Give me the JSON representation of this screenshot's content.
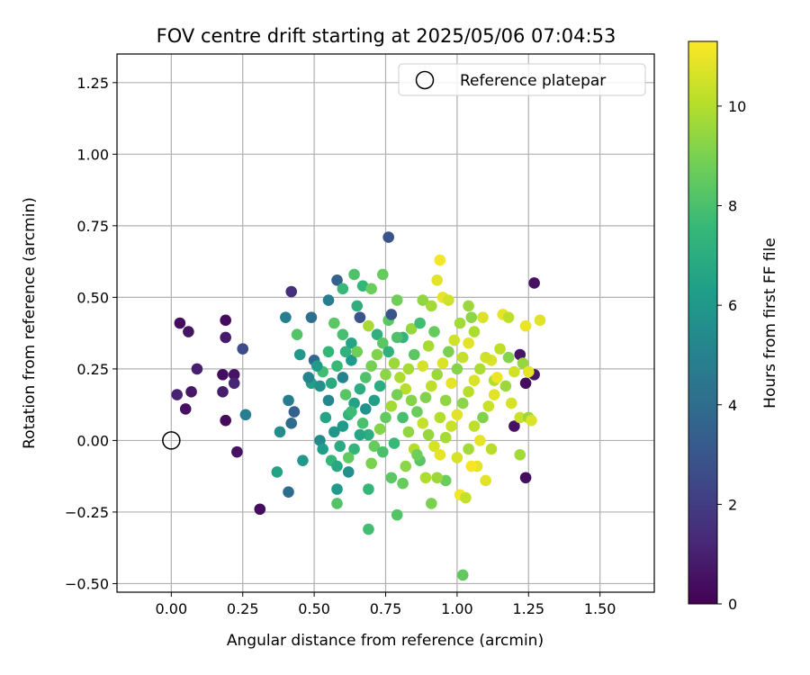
{
  "chart_data": {
    "type": "scatter",
    "title": "FOV centre drift starting at 2025/05/06 07:04:53",
    "xlabel": "Angular distance from reference (arcmin)",
    "ylabel": "Rotation from reference (arcmin)",
    "xlim": [
      -0.19,
      1.69
    ],
    "ylim": [
      -0.53,
      1.35
    ],
    "xticks": [
      "0.00",
      "0.25",
      "0.50",
      "0.75",
      "1.00",
      "1.25",
      "1.50"
    ],
    "xtick_values": [
      0,
      0.25,
      0.5,
      0.75,
      1.0,
      1.25,
      1.5
    ],
    "yticks": [
      "−0.50",
      "−0.25",
      "0.00",
      "0.25",
      "0.50",
      "0.75",
      "1.00",
      "1.25"
    ],
    "ytick_values": [
      -0.5,
      -0.25,
      0,
      0.25,
      0.5,
      0.75,
      1.0,
      1.25
    ],
    "grid": true,
    "legend": {
      "placement": "top-right",
      "entries": [
        "Reference platepar"
      ]
    },
    "reference_point": {
      "x": 0.0,
      "y": 0.0,
      "label": "Reference platepar"
    },
    "colorbar": {
      "label": "Hours from first FF file",
      "range": [
        0,
        11.3
      ],
      "ticks": [
        "0",
        "2",
        "4",
        "6",
        "8",
        "10"
      ],
      "tick_values": [
        0,
        2,
        4,
        6,
        8,
        10
      ],
      "colormap": "viridis",
      "colormap_stops": [
        "#440154",
        "#482878",
        "#3e4a89",
        "#31688e",
        "#26828e",
        "#1f9e89",
        "#35b779",
        "#6ece58",
        "#b5de2b",
        "#fde725"
      ]
    },
    "points": [
      {
        "x": 0.03,
        "y": 0.41,
        "c": 0.4
      },
      {
        "x": 0.06,
        "y": 0.38,
        "c": 0.6
      },
      {
        "x": 0.09,
        "y": 0.25,
        "c": 0.9
      },
      {
        "x": 0.02,
        "y": 0.16,
        "c": 1.1
      },
      {
        "x": 0.07,
        "y": 0.17,
        "c": 0.7
      },
      {
        "x": 0.05,
        "y": 0.11,
        "c": 0.5
      },
      {
        "x": 0.19,
        "y": 0.42,
        "c": 0.3
      },
      {
        "x": 0.19,
        "y": 0.36,
        "c": 0.8
      },
      {
        "x": 0.18,
        "y": 0.23,
        "c": 0.4
      },
      {
        "x": 0.22,
        "y": 0.23,
        "c": 0.6
      },
      {
        "x": 0.22,
        "y": 0.2,
        "c": 1.2
      },
      {
        "x": 0.18,
        "y": 0.17,
        "c": 0.9
      },
      {
        "x": 0.19,
        "y": 0.07,
        "c": 0.3
      },
      {
        "x": 0.23,
        "y": -0.04,
        "c": 0.5
      },
      {
        "x": 0.25,
        "y": 0.32,
        "c": 2.6
      },
      {
        "x": 0.26,
        "y": 0.09,
        "c": 4.8
      },
      {
        "x": 0.31,
        "y": -0.24,
        "c": 0.4
      },
      {
        "x": 0.42,
        "y": 0.52,
        "c": 1.5
      },
      {
        "x": 0.4,
        "y": 0.43,
        "c": 4.9
      },
      {
        "x": 0.44,
        "y": 0.37,
        "c": 8.2
      },
      {
        "x": 0.45,
        "y": 0.3,
        "c": 6.0
      },
      {
        "x": 0.41,
        "y": 0.14,
        "c": 4.7
      },
      {
        "x": 0.43,
        "y": 0.1,
        "c": 3.5
      },
      {
        "x": 0.42,
        "y": 0.06,
        "c": 4.0
      },
      {
        "x": 0.38,
        "y": 0.03,
        "c": 5.5
      },
      {
        "x": 0.37,
        "y": -0.11,
        "c": 6.5
      },
      {
        "x": 0.41,
        "y": -0.18,
        "c": 4.0
      },
      {
        "x": 0.46,
        "y": -0.07,
        "c": 6.0
      },
      {
        "x": 0.49,
        "y": 0.43,
        "c": 4.1
      },
      {
        "x": 0.5,
        "y": 0.28,
        "c": 3.8
      },
      {
        "x": 0.49,
        "y": 0.2,
        "c": 6.4
      },
      {
        "x": 0.53,
        "y": 0.24,
        "c": 7.8
      },
      {
        "x": 0.55,
        "y": 0.31,
        "c": 7.5
      },
      {
        "x": 0.55,
        "y": 0.49,
        "c": 4.8
      },
      {
        "x": 0.58,
        "y": 0.56,
        "c": 3.5
      },
      {
        "x": 0.6,
        "y": 0.53,
        "c": 7.6
      },
      {
        "x": 0.64,
        "y": 0.58,
        "c": 8.1
      },
      {
        "x": 0.67,
        "y": 0.54,
        "c": 7.5
      },
      {
        "x": 0.7,
        "y": 0.53,
        "c": 8.7
      },
      {
        "x": 0.74,
        "y": 0.58,
        "c": 8.6
      },
      {
        "x": 0.76,
        "y": 0.71,
        "c": 2.9
      },
      {
        "x": 0.79,
        "y": 0.49,
        "c": 8.8
      },
      {
        "x": 0.57,
        "y": 0.41,
        "c": 8.4
      },
      {
        "x": 0.6,
        "y": 0.37,
        "c": 7.9
      },
      {
        "x": 0.63,
        "y": 0.34,
        "c": 6.6
      },
      {
        "x": 0.66,
        "y": 0.43,
        "c": 2.9
      },
      {
        "x": 0.65,
        "y": 0.47,
        "c": 7.1
      },
      {
        "x": 0.69,
        "y": 0.4,
        "c": 9.8
      },
      {
        "x": 0.72,
        "y": 0.37,
        "c": 7.2
      },
      {
        "x": 0.76,
        "y": 0.42,
        "c": 8.4
      },
      {
        "x": 0.77,
        "y": 0.44,
        "c": 3.0
      },
      {
        "x": 0.81,
        "y": 0.36,
        "c": 7.4
      },
      {
        "x": 0.84,
        "y": 0.39,
        "c": 9.5
      },
      {
        "x": 0.87,
        "y": 0.41,
        "c": 7.8
      },
      {
        "x": 0.88,
        "y": 0.49,
        "c": 9.4
      },
      {
        "x": 0.91,
        "y": 0.47,
        "c": 9.7
      },
      {
        "x": 0.93,
        "y": 0.56,
        "c": 10.8
      },
      {
        "x": 0.94,
        "y": 0.63,
        "c": 11.1
      },
      {
        "x": 0.95,
        "y": 0.5,
        "c": 10.9
      },
      {
        "x": 0.97,
        "y": 0.49,
        "c": 10.5
      },
      {
        "x": 1.01,
        "y": 0.41,
        "c": 9.7
      },
      {
        "x": 1.04,
        "y": 0.47,
        "c": 9.6
      },
      {
        "x": 1.05,
        "y": 0.43,
        "c": 9.3
      },
      {
        "x": 1.09,
        "y": 0.43,
        "c": 10.7
      },
      {
        "x": 1.16,
        "y": 0.44,
        "c": 10.9
      },
      {
        "x": 1.18,
        "y": 0.43,
        "c": 10.2
      },
      {
        "x": 1.27,
        "y": 0.55,
        "c": 0.5
      },
      {
        "x": 1.29,
        "y": 0.42,
        "c": 10.8
      },
      {
        "x": 1.24,
        "y": 0.4,
        "c": 11.0
      },
      {
        "x": 1.22,
        "y": 0.3,
        "c": 0.6
      },
      {
        "x": 1.23,
        "y": 0.27,
        "c": 9.5
      },
      {
        "x": 1.2,
        "y": 0.24,
        "c": 10.5
      },
      {
        "x": 1.24,
        "y": 0.2,
        "c": 0.4
      },
      {
        "x": 1.27,
        "y": 0.23,
        "c": 0.7
      },
      {
        "x": 1.25,
        "y": 0.24,
        "c": 10.9
      },
      {
        "x": 1.18,
        "y": 0.29,
        "c": 9.2
      },
      {
        "x": 1.15,
        "y": 0.32,
        "c": 10.2
      },
      {
        "x": 1.12,
        "y": 0.28,
        "c": 10.7
      },
      {
        "x": 1.13,
        "y": 0.21,
        "c": 10.0
      },
      {
        "x": 1.13,
        "y": 0.16,
        "c": 10.8
      },
      {
        "x": 1.19,
        "y": 0.13,
        "c": 10.6
      },
      {
        "x": 1.2,
        "y": 0.05,
        "c": 0.5
      },
      {
        "x": 1.22,
        "y": 0.08,
        "c": 10.4
      },
      {
        "x": 1.25,
        "y": 0.08,
        "c": 9.6
      },
      {
        "x": 1.26,
        "y": 0.07,
        "c": 10.7
      },
      {
        "x": 1.22,
        "y": -0.05,
        "c": 9.7
      },
      {
        "x": 1.24,
        "y": -0.13,
        "c": 0.4
      },
      {
        "x": 1.1,
        "y": -0.14,
        "c": 10.8
      },
      {
        "x": 1.07,
        "y": -0.09,
        "c": 10.9
      },
      {
        "x": 1.01,
        "y": -0.19,
        "c": 11.1
      },
      {
        "x": 1.03,
        "y": -0.2,
        "c": 10.3
      },
      {
        "x": 0.96,
        "y": -0.14,
        "c": 8.7
      },
      {
        "x": 0.93,
        "y": -0.13,
        "c": 9.6
      },
      {
        "x": 0.89,
        "y": -0.13,
        "c": 9.9
      },
      {
        "x": 0.91,
        "y": -0.22,
        "c": 9.0
      },
      {
        "x": 0.81,
        "y": -0.15,
        "c": 8.6
      },
      {
        "x": 0.77,
        "y": -0.13,
        "c": 8.4
      },
      {
        "x": 0.79,
        "y": -0.26,
        "c": 8.2
      },
      {
        "x": 0.69,
        "y": -0.17,
        "c": 7.5
      },
      {
        "x": 0.69,
        "y": -0.31,
        "c": 7.8
      },
      {
        "x": 0.58,
        "y": -0.17,
        "c": 6.1
      },
      {
        "x": 0.58,
        "y": -0.22,
        "c": 8.2
      },
      {
        "x": 0.62,
        "y": -0.11,
        "c": 5.6
      },
      {
        "x": 1.02,
        "y": -0.47,
        "c": 8.5
      },
      {
        "x": 0.52,
        "y": 0.0,
        "c": 5.4
      },
      {
        "x": 0.53,
        "y": -0.03,
        "c": 6.3
      },
      {
        "x": 0.56,
        "y": -0.07,
        "c": 7.5
      },
      {
        "x": 0.58,
        "y": -0.09,
        "c": 6.8
      },
      {
        "x": 0.6,
        "y": 0.05,
        "c": 6.2
      },
      {
        "x": 0.62,
        "y": 0.09,
        "c": 7.3
      },
      {
        "x": 0.64,
        "y": 0.13,
        "c": 6.5
      },
      {
        "x": 0.66,
        "y": 0.18,
        "c": 7.0
      },
      {
        "x": 0.68,
        "y": 0.22,
        "c": 8.1
      },
      {
        "x": 0.7,
        "y": 0.26,
        "c": 8.9
      },
      {
        "x": 0.72,
        "y": 0.3,
        "c": 9.1
      },
      {
        "x": 0.74,
        "y": 0.34,
        "c": 8.4
      },
      {
        "x": 0.76,
        "y": 0.31,
        "c": 7.2
      },
      {
        "x": 0.78,
        "y": 0.27,
        "c": 9.6
      },
      {
        "x": 0.8,
        "y": 0.22,
        "c": 9.9
      },
      {
        "x": 0.82,
        "y": 0.18,
        "c": 10.1
      },
      {
        "x": 0.84,
        "y": 0.14,
        "c": 9.2
      },
      {
        "x": 0.86,
        "y": 0.1,
        "c": 8.7
      },
      {
        "x": 0.88,
        "y": 0.06,
        "c": 10.3
      },
      {
        "x": 0.9,
        "y": 0.02,
        "c": 9.5
      },
      {
        "x": 0.92,
        "y": -0.02,
        "c": 10.6
      },
      {
        "x": 0.94,
        "y": -0.05,
        "c": 10.9
      },
      {
        "x": 0.96,
        "y": 0.01,
        "c": 9.8
      },
      {
        "x": 0.98,
        "y": 0.05,
        "c": 10.4
      },
      {
        "x": 1.0,
        "y": 0.09,
        "c": 10.8
      },
      {
        "x": 1.02,
        "y": 0.13,
        "c": 9.3
      },
      {
        "x": 1.04,
        "y": 0.17,
        "c": 10.1
      },
      {
        "x": 1.06,
        "y": 0.21,
        "c": 10.7
      },
      {
        "x": 1.08,
        "y": 0.25,
        "c": 9.9
      },
      {
        "x": 1.1,
        "y": 0.29,
        "c": 10.5
      },
      {
        "x": 1.06,
        "y": 0.05,
        "c": 10.2
      },
      {
        "x": 1.08,
        "y": 0.0,
        "c": 10.9
      },
      {
        "x": 1.04,
        "y": -0.03,
        "c": 9.7
      },
      {
        "x": 1.0,
        "y": -0.06,
        "c": 10.6
      },
      {
        "x": 0.55,
        "y": 0.14,
        "c": 5.2
      },
      {
        "x": 0.56,
        "y": 0.2,
        "c": 6.9
      },
      {
        "x": 0.58,
        "y": 0.26,
        "c": 7.6
      },
      {
        "x": 0.6,
        "y": 0.22,
        "c": 5.0
      },
      {
        "x": 0.61,
        "y": 0.16,
        "c": 8.3
      },
      {
        "x": 0.63,
        "y": 0.1,
        "c": 7.7
      },
      {
        "x": 0.63,
        "y": 0.28,
        "c": 6.1
      },
      {
        "x": 0.65,
        "y": 0.31,
        "c": 8.8
      },
      {
        "x": 0.67,
        "y": 0.06,
        "c": 8.0
      },
      {
        "x": 0.69,
        "y": 0.02,
        "c": 7.1
      },
      {
        "x": 0.71,
        "y": -0.02,
        "c": 8.6
      },
      {
        "x": 0.73,
        "y": 0.04,
        "c": 9.2
      },
      {
        "x": 0.75,
        "y": 0.08,
        "c": 8.5
      },
      {
        "x": 0.77,
        "y": 0.12,
        "c": 9.7
      },
      {
        "x": 0.79,
        "y": 0.16,
        "c": 8.9
      },
      {
        "x": 0.81,
        "y": 0.08,
        "c": 7.9
      },
      {
        "x": 0.83,
        "y": 0.03,
        "c": 9.4
      },
      {
        "x": 0.85,
        "y": -0.03,
        "c": 10.0
      },
      {
        "x": 0.87,
        "y": -0.07,
        "c": 8.3
      },
      {
        "x": 0.89,
        "y": 0.15,
        "c": 9.1
      },
      {
        "x": 0.91,
        "y": 0.19,
        "c": 10.2
      },
      {
        "x": 0.93,
        "y": 0.23,
        "c": 9.6
      },
      {
        "x": 0.95,
        "y": 0.27,
        "c": 10.7
      },
      {
        "x": 0.97,
        "y": 0.31,
        "c": 9.0
      },
      {
        "x": 0.99,
        "y": 0.35,
        "c": 10.5
      },
      {
        "x": 0.85,
        "y": 0.3,
        "c": 8.4
      },
      {
        "x": 0.83,
        "y": 0.25,
        "c": 9.8
      },
      {
        "x": 0.79,
        "y": 0.36,
        "c": 8.1
      },
      {
        "x": 0.71,
        "y": 0.14,
        "c": 6.4
      },
      {
        "x": 0.73,
        "y": 0.19,
        "c": 7.0
      },
      {
        "x": 0.75,
        "y": 0.23,
        "c": 9.3
      },
      {
        "x": 0.68,
        "y": 0.11,
        "c": 5.8
      },
      {
        "x": 0.66,
        "y": 0.02,
        "c": 6.7
      },
      {
        "x": 0.64,
        "y": -0.03,
        "c": 7.4
      },
      {
        "x": 0.62,
        "y": -0.06,
        "c": 8.5
      },
      {
        "x": 0.7,
        "y": -0.08,
        "c": 9.0
      },
      {
        "x": 0.74,
        "y": -0.04,
        "c": 8.0
      },
      {
        "x": 0.78,
        "y": -0.01,
        "c": 7.6
      },
      {
        "x": 0.82,
        "y": -0.09,
        "c": 9.3
      },
      {
        "x": 0.86,
        "y": -0.05,
        "c": 8.8
      },
      {
        "x": 0.94,
        "y": 0.08,
        "c": 10.0
      },
      {
        "x": 0.96,
        "y": 0.14,
        "c": 9.4
      },
      {
        "x": 0.98,
        "y": 0.2,
        "c": 10.9
      },
      {
        "x": 1.0,
        "y": 0.25,
        "c": 9.2
      },
      {
        "x": 1.02,
        "y": 0.29,
        "c": 10.3
      },
      {
        "x": 1.04,
        "y": 0.34,
        "c": 10.8
      },
      {
        "x": 1.06,
        "y": 0.38,
        "c": 9.9
      },
      {
        "x": 0.92,
        "y": 0.38,
        "c": 8.6
      },
      {
        "x": 0.9,
        "y": 0.33,
        "c": 9.8
      },
      {
        "x": 0.88,
        "y": 0.26,
        "c": 10.6
      },
      {
        "x": 0.54,
        "y": 0.08,
        "c": 6.6
      },
      {
        "x": 0.57,
        "y": 0.03,
        "c": 5.9
      },
      {
        "x": 0.59,
        "y": -0.02,
        "c": 6.9
      },
      {
        "x": 0.61,
        "y": 0.31,
        "c": 7.3
      },
      {
        "x": 0.52,
        "y": 0.19,
        "c": 5.7
      },
      {
        "x": 0.51,
        "y": 0.26,
        "c": 6.2
      },
      {
        "x": 0.48,
        "y": 0.22,
        "c": 5.1
      },
      {
        "x": 1.11,
        "y": 0.12,
        "c": 10.4
      },
      {
        "x": 1.14,
        "y": 0.22,
        "c": 11.0
      },
      {
        "x": 1.17,
        "y": 0.19,
        "c": 9.6
      },
      {
        "x": 1.09,
        "y": 0.08,
        "c": 9.1
      },
      {
        "x": 1.12,
        "y": -0.03,
        "c": 10.1
      },
      {
        "x": 1.05,
        "y": -0.09,
        "c": 11.2
      }
    ]
  }
}
